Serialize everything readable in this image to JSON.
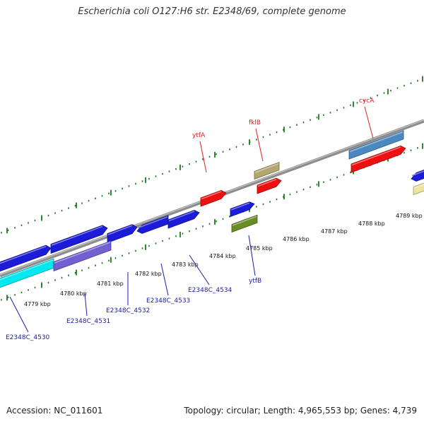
{
  "title": "Escherichia coli O127:H6 str. E2348/69, complete genome",
  "footer": {
    "accession": "Accession: NC_011601",
    "summary": "Topology: circular; Length: 4,965,553 bp; Genes: 4,739"
  },
  "colors": {
    "backbone": "#8c8c8c",
    "tick": "#1e7a1e",
    "upper_label": "#e02020",
    "lower_label": "#1a1aa6"
  },
  "kbp_ticks": [
    "4779 kbp",
    "4780 kbp",
    "4781 kbp",
    "4782 kbp",
    "4783 kbp",
    "4784 kbp",
    "4785 kbp",
    "4786 kbp",
    "4787 kbp",
    "4788 kbp",
    "4789 kbp"
  ],
  "features": [
    {
      "name": "blue-gene",
      "color": "#1c1cd8"
    },
    {
      "name": "blue-gene",
      "color": "#1c1cd8"
    },
    {
      "name": "blue-gene",
      "color": "#1c1cd8"
    },
    {
      "name": "blue-gene",
      "color": "#1c1cd8"
    },
    {
      "name": "blue-gene",
      "color": "#1c1cd8"
    },
    {
      "name": "blue-gene",
      "color": "#1c1cd8"
    },
    {
      "name": "cyan-gene",
      "color": "#00e8f0"
    },
    {
      "name": "purple-gene",
      "color": "#7060d0"
    },
    {
      "name": "red-gene",
      "color": "#ee1010"
    },
    {
      "name": "red-gene",
      "color": "#ee1010"
    },
    {
      "name": "red-gene",
      "color": "#ee1010"
    },
    {
      "name": "khaki-gene",
      "color": "#b0a870"
    },
    {
      "name": "steelblue-gene",
      "color": "#4a88c0"
    },
    {
      "name": "olive-gene",
      "color": "#6a8c24"
    },
    {
      "name": "blue-gene",
      "color": "#1c1cd8"
    },
    {
      "name": "lightyellow-gene",
      "color": "#eee4a0"
    }
  ],
  "upper_labels": [
    {
      "text": "ytfA"
    },
    {
      "text": "fklB"
    },
    {
      "text": "cycA"
    }
  ],
  "lower_labels": [
    {
      "text": "E2348C_4530"
    },
    {
      "text": "E2348C_4531"
    },
    {
      "text": "E2348C_4532"
    },
    {
      "text": "E2348C_4533"
    },
    {
      "text": "E2348C_4534"
    },
    {
      "text": "ytfB"
    }
  ]
}
